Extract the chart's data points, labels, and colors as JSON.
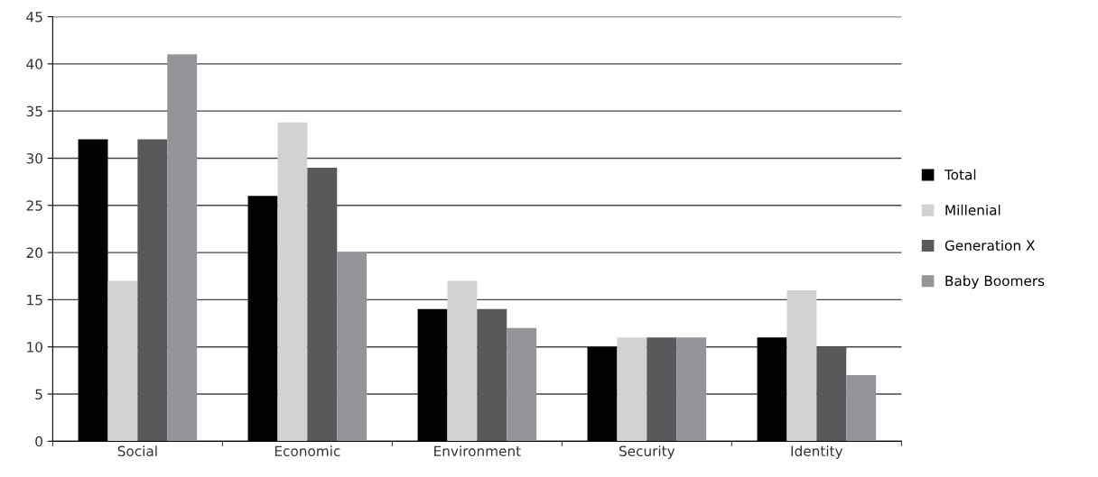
{
  "chart_data": {
    "type": "bar",
    "categories": [
      "Social",
      "Economic",
      "Environment",
      "Security",
      "Identity"
    ],
    "series": [
      {
        "name": "Total",
        "color": "#000000",
        "values": [
          32,
          26,
          14,
          10,
          11
        ]
      },
      {
        "name": "Millenial",
        "color": "#d1d2d4",
        "values": [
          17,
          33.8,
          17,
          11,
          16
        ]
      },
      {
        "name": "Generation X",
        "color": "#58595b",
        "values": [
          32,
          29,
          14,
          11,
          10
        ]
      },
      {
        "name": "Baby Boomers",
        "color": "#939598",
        "values": [
          41,
          20,
          12,
          11,
          7
        ]
      }
    ],
    "ylim": [
      0,
      45
    ],
    "yticks": [
      0,
      5,
      10,
      15,
      20,
      25,
      30,
      35,
      40,
      45
    ],
    "grid": "y",
    "legend": "right"
  }
}
